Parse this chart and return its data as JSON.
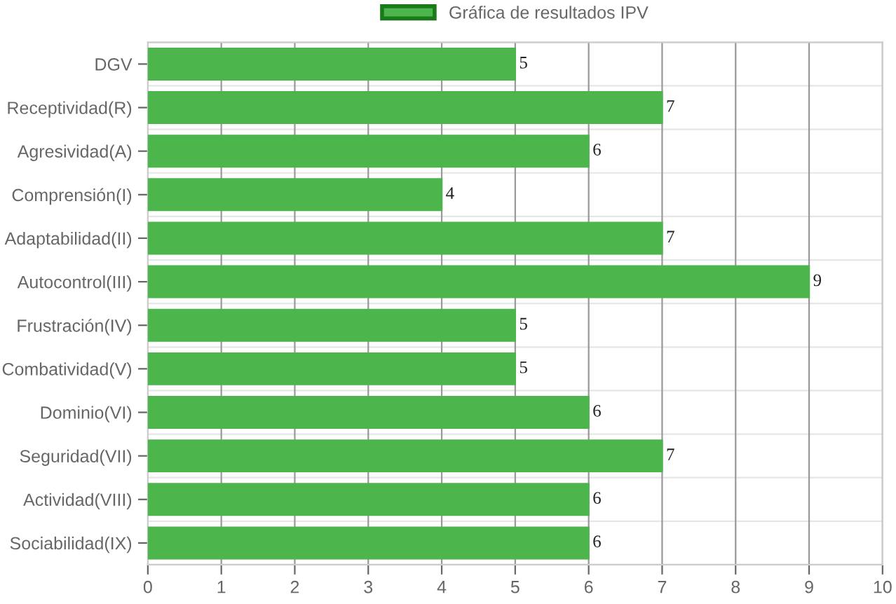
{
  "chart_data": {
    "type": "bar",
    "orientation": "horizontal",
    "categories": [
      "DGV",
      "Receptividad(R)",
      "Agresividad(A)",
      "Comprensión(I)",
      "Adaptabilidad(II)",
      "Autocontrol(III)",
      "Frustración(IV)",
      "Combatividad(V)",
      "Dominio(VI)",
      "Seguridad(VII)",
      "Actividad(VIII)",
      "Sociabilidad(IX)"
    ],
    "series": [
      {
        "name": "Gráfica de resultados IPV",
        "color": "#4cb54c",
        "values": [
          5,
          7,
          6,
          4,
          7,
          9,
          5,
          5,
          6,
          7,
          6,
          6
        ]
      }
    ],
    "xlim": [
      0,
      10
    ],
    "xticks": [
      0,
      1,
      2,
      3,
      4,
      5,
      6,
      7,
      8,
      9,
      10
    ],
    "grid": true,
    "legend": "top",
    "data_labels": true
  }
}
